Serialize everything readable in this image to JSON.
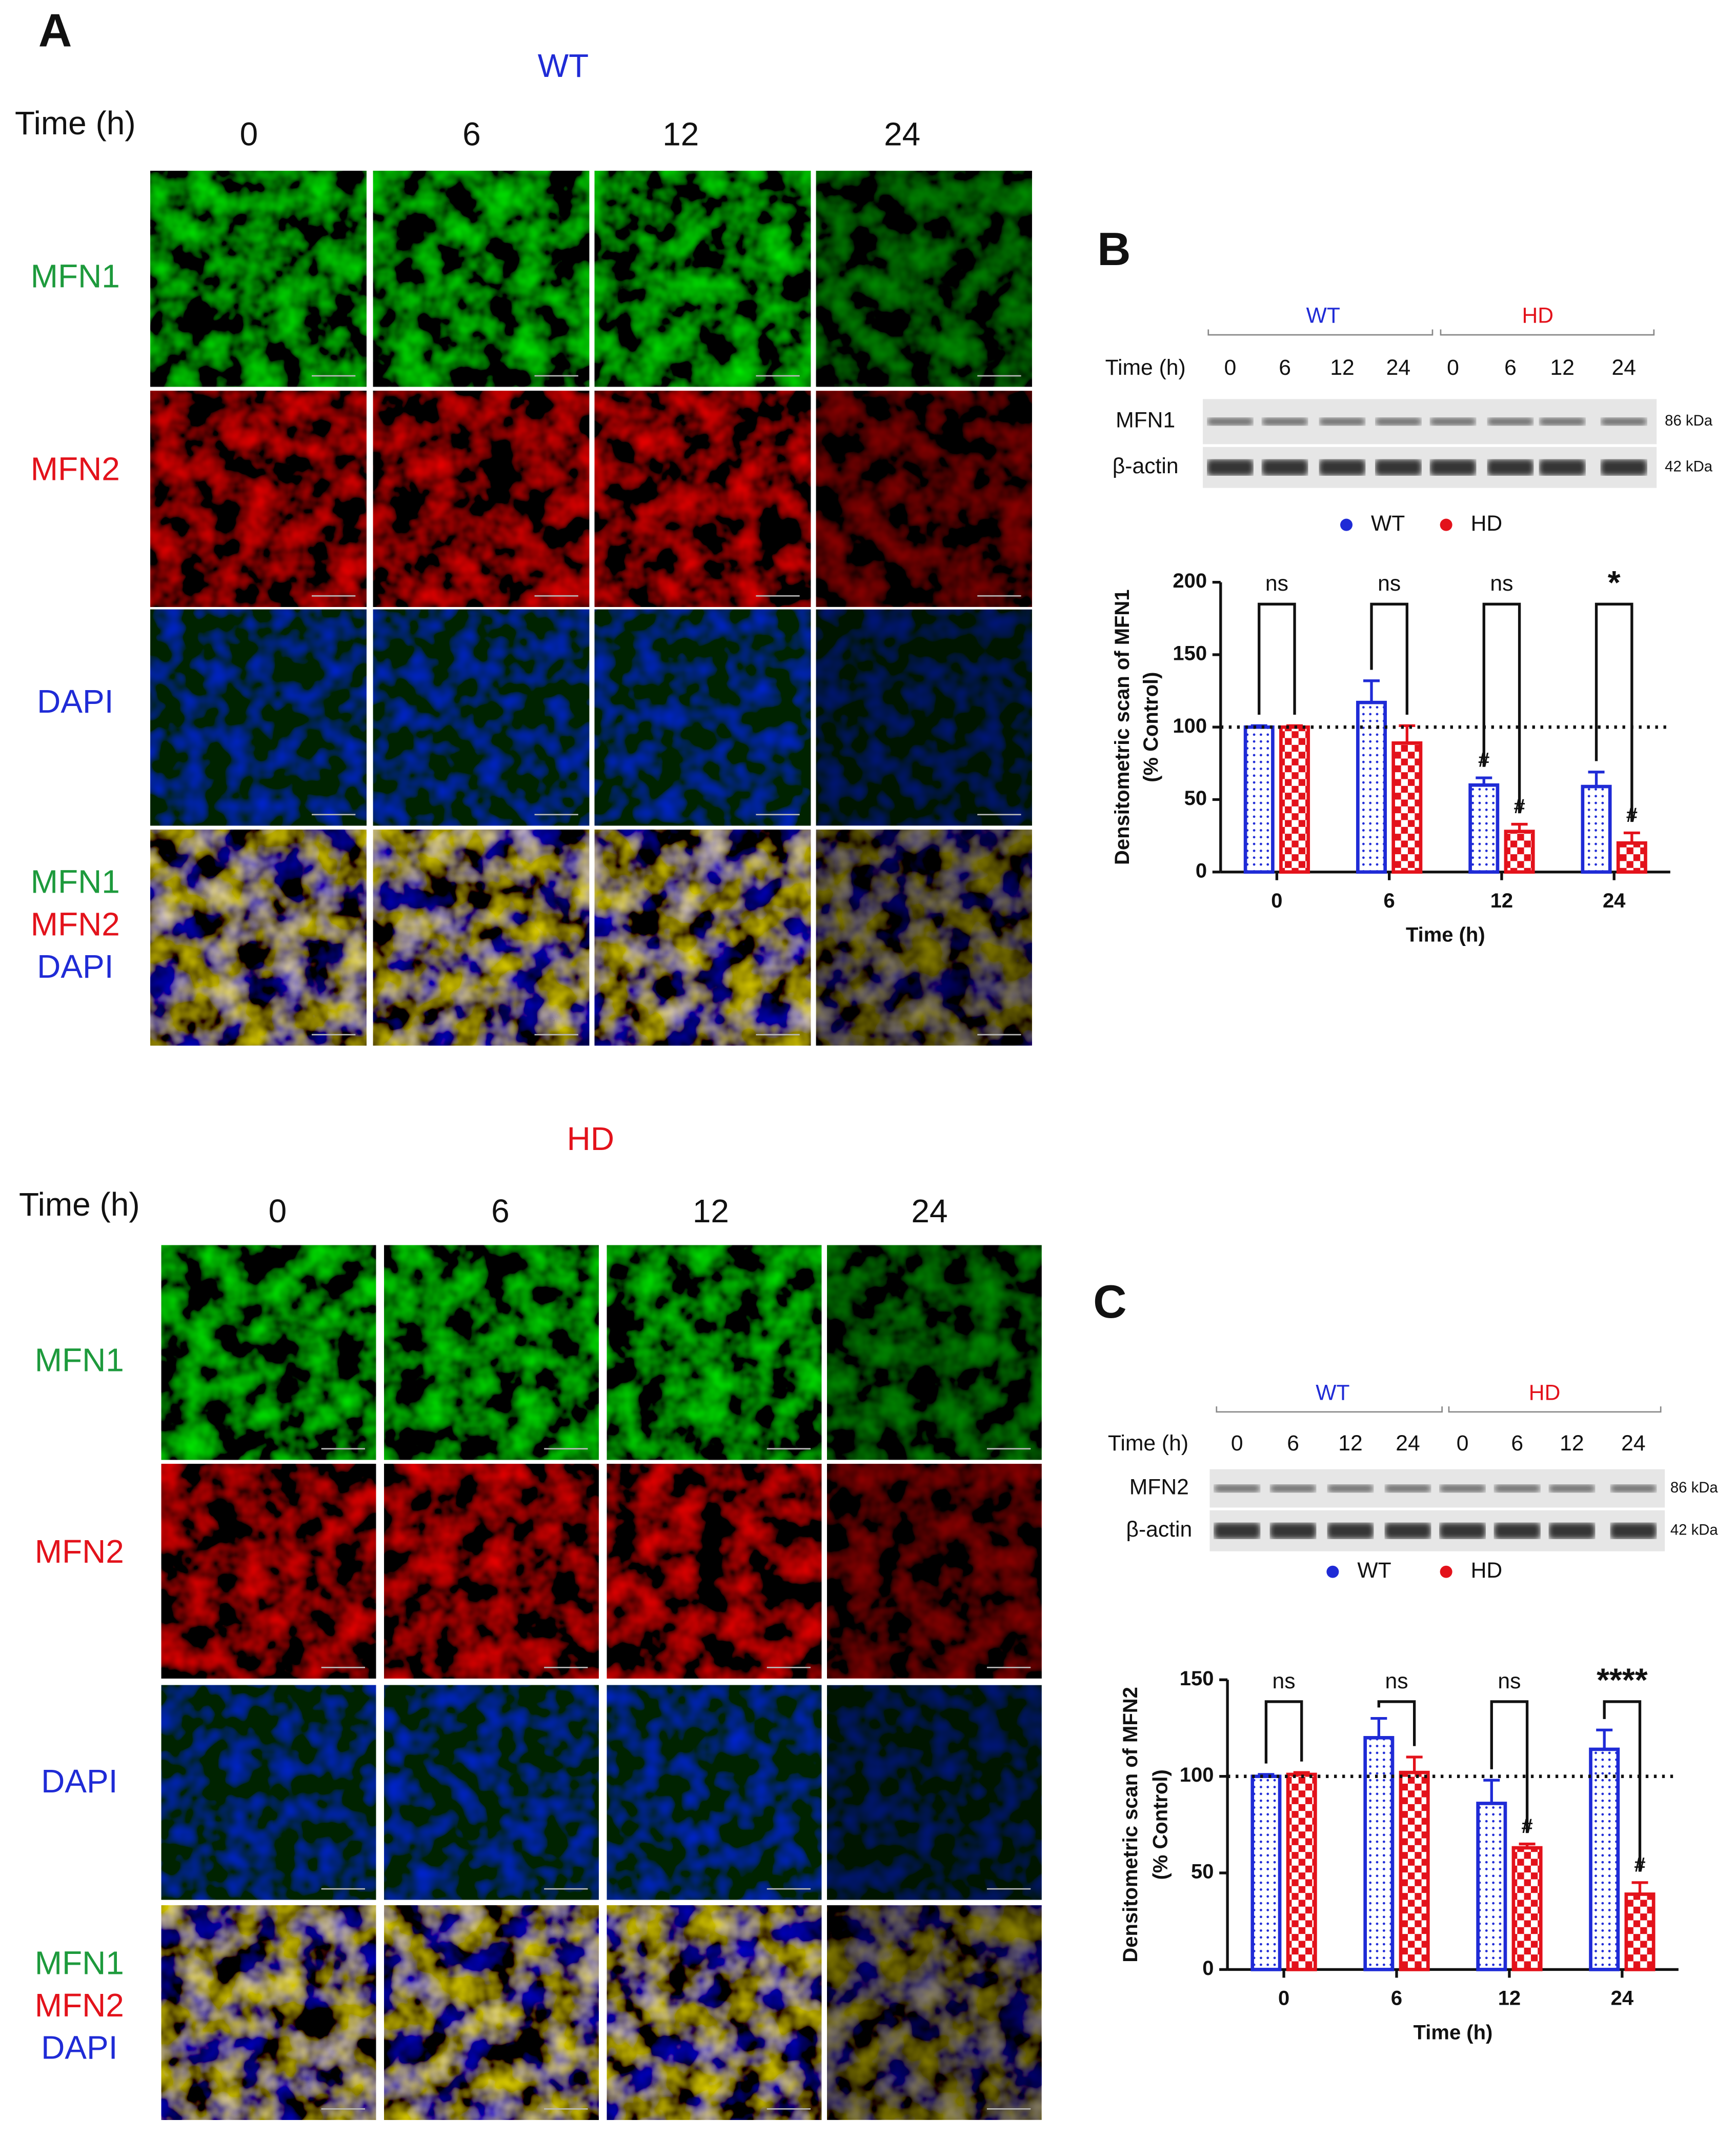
{
  "panel_a": {
    "label": "A",
    "groups": [
      {
        "title": "WT",
        "time_label": "Time (h)",
        "times": [
          "0",
          "6",
          "12",
          "24"
        ],
        "rows": [
          "MFN1",
          "MFN2",
          "DAPI"
        ],
        "merge": [
          "MFN1",
          "MFN2",
          "DAPI"
        ]
      },
      {
        "title": "HD",
        "time_label": "Time (h)",
        "times": [
          "0",
          "6",
          "12",
          "24"
        ],
        "rows": [
          "MFN1",
          "MFN2",
          "DAPI"
        ],
        "merge": [
          "MFN1",
          "MFN2",
          "DAPI"
        ]
      }
    ]
  },
  "blots": [
    {
      "label": "B",
      "groups": [
        "WT",
        "HD"
      ],
      "time_label": "Time (h)",
      "times": [
        "0",
        "6",
        "12",
        "24",
        "0",
        "6",
        "12",
        "24"
      ],
      "rows": [
        {
          "name": "MFN1",
          "size": "86 kDa"
        },
        {
          "name": "β-actin",
          "size": "42 kDa"
        }
      ]
    },
    {
      "label": "C",
      "groups": [
        "WT",
        "HD"
      ],
      "time_label": "Time (h)",
      "times": [
        "0",
        "6",
        "12",
        "24",
        "0",
        "6",
        "12",
        "24"
      ],
      "rows": [
        {
          "name": "MFN2",
          "size": "86 kDa"
        },
        {
          "name": "β-actin",
          "size": "42 kDa"
        }
      ]
    }
  ],
  "chart_data": [
    {
      "type": "bar",
      "ylabel": [
        "Densitometric scan of MFN1",
        "(% Control)"
      ],
      "xlabel": "Time (h)",
      "categories": [
        "0",
        "6",
        "12",
        "24"
      ],
      "series": [
        {
          "name": "WT",
          "color": "#1f2bd6",
          "values": [
            100,
            117,
            60,
            59
          ],
          "errors": [
            1,
            15,
            5,
            10
          ],
          "flags": [
            null,
            null,
            "#",
            null
          ]
        },
        {
          "name": "HD",
          "color": "#e3121b",
          "values": [
            100,
            89,
            28,
            20
          ],
          "errors": [
            1,
            12,
            5,
            7
          ],
          "flags": [
            null,
            null,
            "#",
            "#"
          ]
        }
      ],
      "annotations": [
        "ns",
        "ns",
        "ns",
        "*"
      ],
      "reference_line": 100,
      "ylim": [
        0,
        200
      ],
      "yticks": [
        0,
        50,
        100,
        150,
        200
      ]
    },
    {
      "type": "bar",
      "ylabel": [
        "Densitometric scan of MFN2",
        "(% Control)"
      ],
      "xlabel": "Time (h)",
      "categories": [
        "0",
        "6",
        "12",
        "24"
      ],
      "series": [
        {
          "name": "WT",
          "color": "#1f2bd6",
          "values": [
            100,
            120,
            86,
            114
          ],
          "errors": [
            1,
            10,
            12,
            10
          ],
          "flags": [
            null,
            null,
            null,
            null
          ]
        },
        {
          "name": "HD",
          "color": "#e3121b",
          "values": [
            101,
            102,
            63,
            39
          ],
          "errors": [
            1,
            8,
            2,
            6
          ],
          "flags": [
            null,
            null,
            "#",
            "#"
          ]
        }
      ],
      "annotations": [
        "ns",
        "ns",
        "ns",
        "****"
      ],
      "reference_line": 100,
      "ylim": [
        0,
        150
      ],
      "yticks": [
        0,
        50,
        100,
        150
      ]
    }
  ]
}
